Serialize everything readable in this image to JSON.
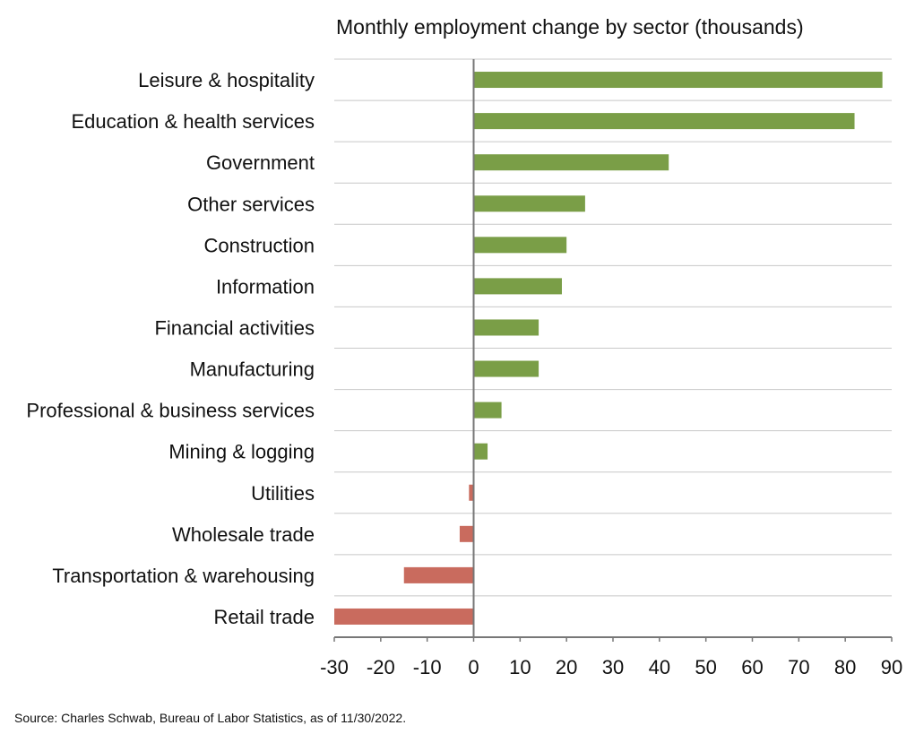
{
  "chart_data": {
    "type": "bar",
    "orientation": "horizontal",
    "title": "Monthly employment change by sector (thousands)",
    "xlabel": "",
    "ylabel": "",
    "xlim": [
      -30,
      90
    ],
    "xticks": [
      -30,
      -20,
      -10,
      0,
      10,
      20,
      30,
      40,
      50,
      60,
      70,
      80,
      90
    ],
    "xtick_labels": [
      "-30",
      "-20",
      "-10",
      "0",
      "10",
      "20",
      "30",
      "40",
      "50",
      "60",
      "70",
      "80",
      "90"
    ],
    "categories": [
      "Leisure & hospitality",
      "Education & health services",
      "Government",
      "Other services",
      "Construction",
      "Information",
      "Financial activities",
      "Manufacturing",
      "Professional & business services",
      "Mining & logging",
      "Utilities",
      "Wholesale trade",
      "Transportation & warehousing",
      "Retail trade"
    ],
    "values": [
      88,
      82,
      42,
      24,
      20,
      19,
      14,
      14,
      6,
      3,
      -1,
      -3,
      -15,
      -30
    ],
    "colors": {
      "positive": "#7a9e47",
      "negative": "#c96b5e",
      "grid": "#c8c8c8",
      "axis": "#777777",
      "text": "#111111"
    },
    "grid": true
  },
  "source": "Source: Charles Schwab, Bureau of Labor Statistics, as of 11/30/2022."
}
